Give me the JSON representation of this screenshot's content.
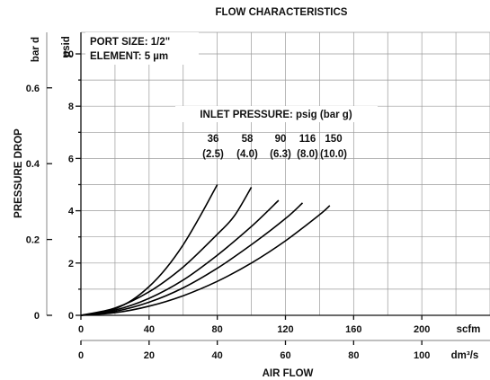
{
  "chart_data": {
    "type": "line",
    "title": "FLOW CHARACTERISTICS",
    "notes": [
      "PORT SIZE: 1/2\"",
      "ELEMENT: 5 µm"
    ],
    "curve_group_title": "INLET PRESSURE: psig (bar g)",
    "xlabel": "AIR FLOW",
    "ylabel": "PRESSURE DROP",
    "x_primary": {
      "unit": "scfm",
      "ticks": [
        "0",
        "40",
        "80",
        "120",
        "160",
        "200"
      ],
      "lim": [
        0,
        240
      ]
    },
    "x_secondary": {
      "unit": "dm³/s",
      "ticks": [
        "0",
        "20",
        "40",
        "60",
        "80",
        "100"
      ]
    },
    "y_primary": {
      "unit": "psid",
      "ticks": [
        "0",
        "2",
        "4",
        "6",
        "8",
        "10"
      ],
      "lim": [
        0,
        10
      ]
    },
    "y_secondary": {
      "unit": "bar d",
      "ticks": [
        "0",
        "0.2",
        "0.4",
        "0.6"
      ]
    },
    "grid": true,
    "series": [
      {
        "name": "36",
        "sub": "(2.5)",
        "x": [
          0,
          10,
          20,
          30,
          40,
          50,
          60,
          70,
          80
        ],
        "y": [
          0,
          0.07,
          0.25,
          0.58,
          1.1,
          1.8,
          2.7,
          3.8,
          5.0
        ]
      },
      {
        "name": "58",
        "sub": "(4.0)",
        "x": [
          0,
          20,
          40,
          60,
          80,
          90,
          100
        ],
        "y": [
          0,
          0.28,
          0.9,
          1.85,
          3.1,
          3.8,
          4.9
        ]
      },
      {
        "name": "90",
        "sub": "(6.3)",
        "x": [
          0,
          20,
          40,
          60,
          80,
          100,
          116
        ],
        "y": [
          0,
          0.2,
          0.65,
          1.35,
          2.3,
          3.4,
          4.4
        ]
      },
      {
        "name": "116",
        "sub": "(8.0)",
        "x": [
          0,
          20,
          40,
          60,
          80,
          100,
          120,
          130
        ],
        "y": [
          0,
          0.15,
          0.5,
          1.05,
          1.8,
          2.7,
          3.7,
          4.3
        ]
      },
      {
        "name": "150",
        "sub": "(10.0)",
        "x": [
          0,
          20,
          40,
          60,
          80,
          100,
          120,
          140,
          146
        ],
        "y": [
          0,
          0.1,
          0.35,
          0.75,
          1.3,
          2.0,
          2.85,
          3.85,
          4.2
        ]
      }
    ]
  }
}
